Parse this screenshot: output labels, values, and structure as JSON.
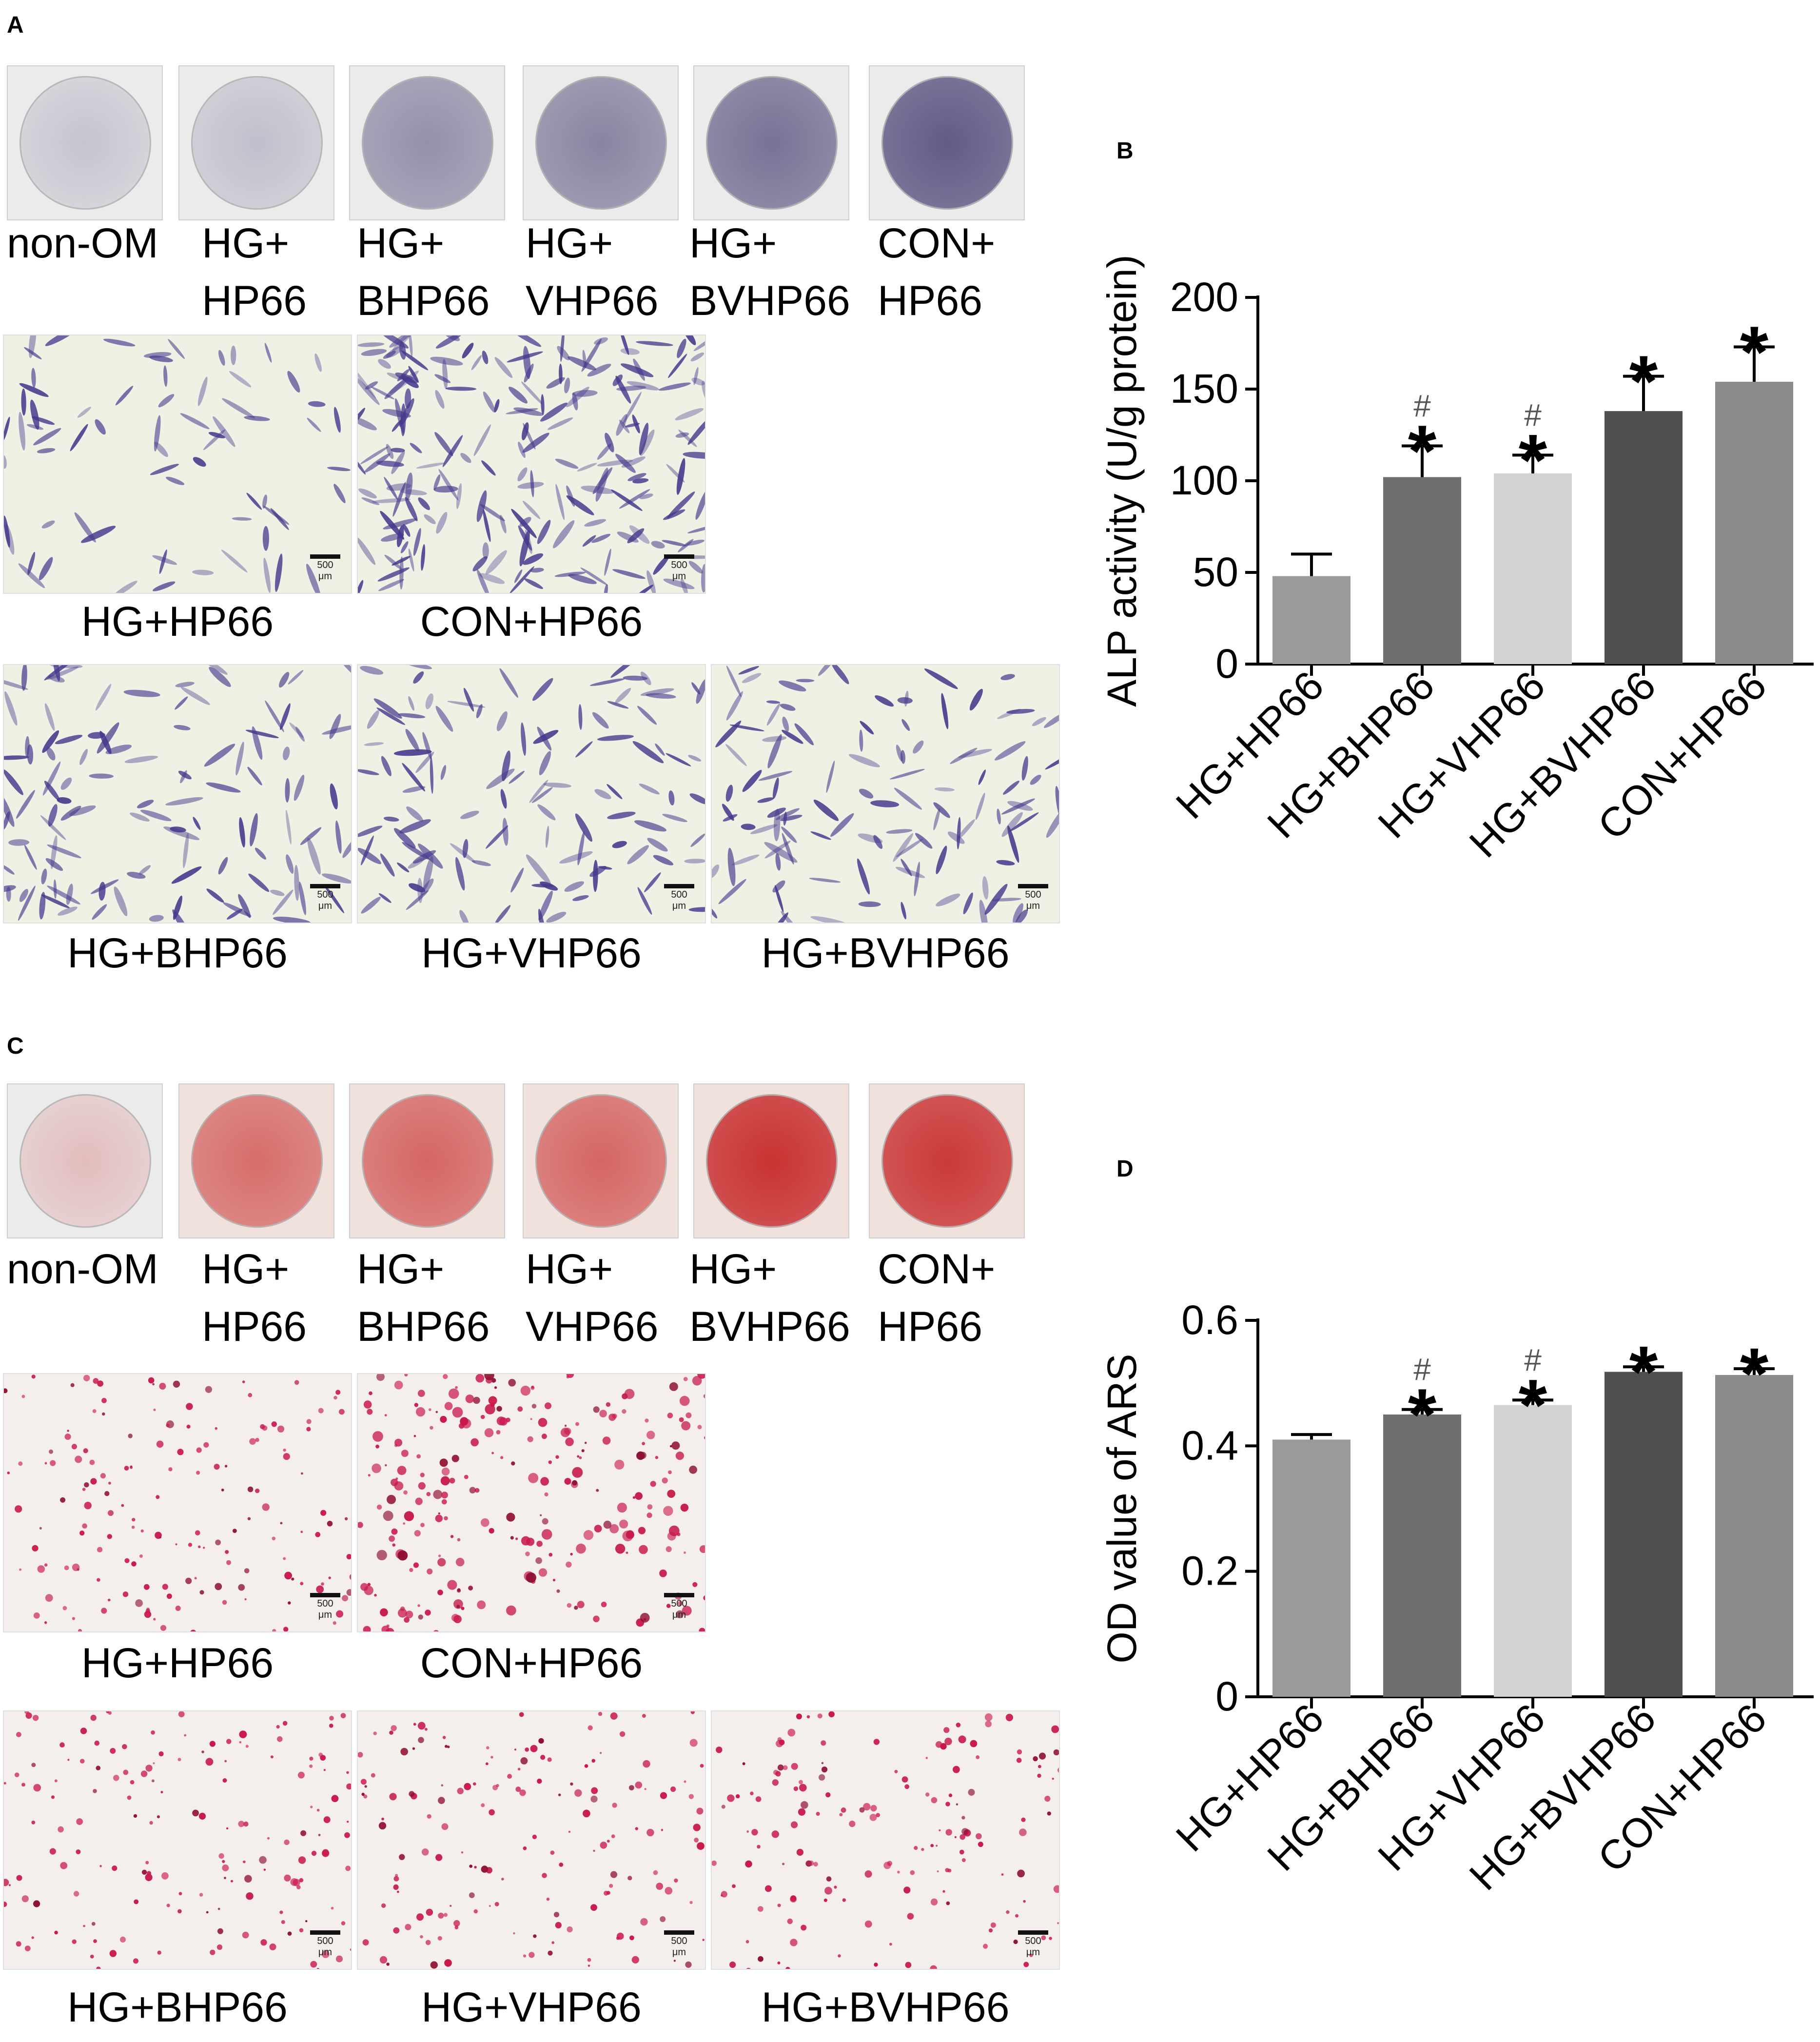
{
  "panels": {
    "A": "A",
    "B": "B",
    "C": "C",
    "D": "D"
  },
  "alp_wells": [
    {
      "line1": "non-OM",
      "line2": "",
      "stain": 0.0
    },
    {
      "line1": "HG+",
      "line2": "HP66",
      "stain": 0.05
    },
    {
      "line1": "HG+",
      "line2": "BHP66",
      "stain": 0.45
    },
    {
      "line1": "HG+",
      "line2": "VHP66",
      "stain": 0.55
    },
    {
      "line1": "HG+",
      "line2": "BVHP66",
      "stain": 0.7
    },
    {
      "line1": "CON+",
      "line2": "HP66",
      "stain": 0.9
    }
  ],
  "ars_wells": [
    {
      "line1": "non-OM",
      "line2": "",
      "stain": 0.0
    },
    {
      "line1": "HG+",
      "line2": "HP66",
      "stain": 0.55
    },
    {
      "line1": "HG+",
      "line2": "BHP66",
      "stain": 0.6
    },
    {
      "line1": "HG+",
      "line2": "VHP66",
      "stain": 0.6
    },
    {
      "line1": "HG+",
      "line2": "BVHP66",
      "stain": 1.0
    },
    {
      "line1": "CON+",
      "line2": "HP66",
      "stain": 0.95
    }
  ],
  "alp_micro": [
    {
      "label": "HG+HP66",
      "scale": "500 μm"
    },
    {
      "label": "CON+HP66",
      "scale": "500 μm"
    },
    {
      "label": "HG+BHP66",
      "scale": "500 μm"
    },
    {
      "label": "HG+VHP66",
      "scale": "500 μm"
    },
    {
      "label": "HG+BVHP66",
      "scale": "500 μm"
    }
  ],
  "ars_micro": [
    {
      "label": "HG+HP66",
      "scale": "500 μm"
    },
    {
      "label": "CON+HP66",
      "scale": "500 μm"
    },
    {
      "label": "HG+BHP66",
      "scale": "500 μm"
    },
    {
      "label": "HG+VHP66",
      "scale": "500 μm"
    },
    {
      "label": "HG+BVHP66",
      "scale": "500 μm"
    }
  ],
  "chart_data": [
    {
      "panel": "B",
      "type": "bar",
      "ylabel": "ALP activity (U/g protein)",
      "ylim": [
        0,
        200
      ],
      "yticks": [
        "0",
        "50",
        "100",
        "150",
        "200"
      ],
      "ytick_values": [
        0,
        50,
        100,
        150,
        200
      ],
      "categories": [
        "HG+HP66",
        "HG+BHP66",
        "HG+VHP66",
        "HG+BVHP66",
        "CON+HP66"
      ],
      "values": [
        48,
        102,
        104,
        138,
        154
      ],
      "errors": [
        12,
        17,
        10,
        19,
        19
      ],
      "colors": [
        "#9a9a9a",
        "#6f6f6f",
        "#d2d2d2",
        "#4f4f4f",
        "#8c8c8c"
      ],
      "markers": [
        {
          "star": "",
          "hash": ""
        },
        {
          "star": "*",
          "hash": "#"
        },
        {
          "star": "*",
          "hash": "#"
        },
        {
          "star": "*",
          "hash": ""
        },
        {
          "star": "*",
          "hash": ""
        }
      ]
    },
    {
      "panel": "D",
      "type": "bar",
      "ylabel": "OD value of ARS",
      "ylim": [
        0,
        0.6
      ],
      "yticks": [
        "0",
        "0.2",
        "0.4",
        "0.6"
      ],
      "ytick_values": [
        0,
        0.2,
        0.4,
        0.6
      ],
      "categories": [
        "HG+HP66",
        "HG+BHP66",
        "HG+VHP66",
        "HG+BVHP66",
        "CON+HP66"
      ],
      "values": [
        0.41,
        0.45,
        0.465,
        0.518,
        0.513
      ],
      "errors": [
        0.008,
        0.008,
        0.008,
        0.008,
        0.01
      ],
      "colors": [
        "#9a9a9a",
        "#6f6f6f",
        "#d2d2d2",
        "#4f4f4f",
        "#8c8c8c"
      ],
      "markers": [
        {
          "star": "",
          "hash": ""
        },
        {
          "star": "*",
          "hash": "#"
        },
        {
          "star": "*",
          "hash": "#"
        },
        {
          "star": "*",
          "hash": ""
        },
        {
          "star": "*",
          "hash": ""
        }
      ]
    }
  ]
}
